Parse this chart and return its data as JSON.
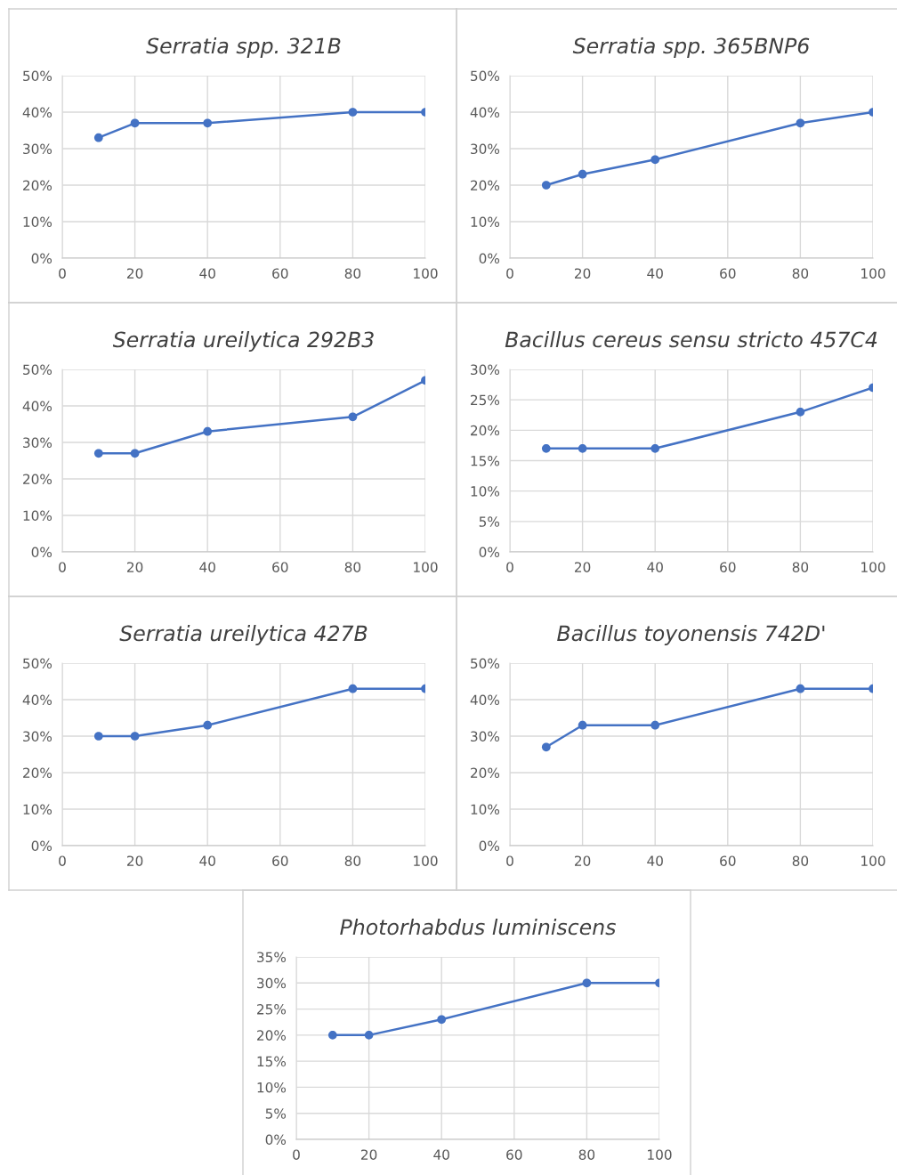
{
  "chart_data": [
    {
      "type": "line",
      "title": "Serratia spp. 321B",
      "x": [
        10,
        20,
        40,
        80,
        100
      ],
      "series": [
        {
          "color": "#4472c4",
          "values": [
            33,
            37,
            37,
            40,
            40
          ]
        }
      ],
      "xlim": [
        0,
        100
      ],
      "xticks": [
        0,
        20,
        40,
        60,
        80,
        100
      ],
      "ylim": [
        0,
        50
      ],
      "yticks": [
        {
          "value": 0,
          "label": "0%"
        },
        {
          "value": 10,
          "label": "10%"
        },
        {
          "value": 20,
          "label": "20%"
        },
        {
          "value": 30,
          "label": "30%"
        },
        {
          "value": 40,
          "label": "40%"
        },
        {
          "value": 50,
          "label": "50%"
        }
      ],
      "grid": true,
      "marker": "circle",
      "line_style": "solid"
    },
    {
      "type": "line",
      "title": "Serratia spp. 365BNP6",
      "x": [
        10,
        20,
        40,
        80,
        100
      ],
      "series": [
        {
          "color": "#4472c4",
          "values": [
            20,
            23,
            27,
            37,
            40
          ]
        }
      ],
      "xlim": [
        0,
        100
      ],
      "xticks": [
        0,
        20,
        40,
        60,
        80,
        100
      ],
      "ylim": [
        0,
        50
      ],
      "yticks": [
        {
          "value": 0,
          "label": "0%"
        },
        {
          "value": 10,
          "label": "10%"
        },
        {
          "value": 20,
          "label": "20%"
        },
        {
          "value": 30,
          "label": "30%"
        },
        {
          "value": 40,
          "label": "40%"
        },
        {
          "value": 50,
          "label": "50%"
        }
      ],
      "grid": true,
      "marker": "circle",
      "line_style": "solid"
    },
    {
      "type": "line",
      "title": "Serratia ureilytica 292B3",
      "x": [
        10,
        20,
        40,
        80,
        100
      ],
      "series": [
        {
          "color": "#4472c4",
          "values": [
            27,
            27,
            33,
            37,
            47
          ]
        }
      ],
      "xlim": [
        0,
        100
      ],
      "xticks": [
        0,
        20,
        40,
        60,
        80,
        100
      ],
      "ylim": [
        0,
        50
      ],
      "yticks": [
        {
          "value": 0,
          "label": "0%"
        },
        {
          "value": 10,
          "label": "10%"
        },
        {
          "value": 20,
          "label": "20%"
        },
        {
          "value": 30,
          "label": "30%"
        },
        {
          "value": 40,
          "label": "40%"
        },
        {
          "value": 50,
          "label": "50%"
        }
      ],
      "grid": true,
      "marker": "circle",
      "line_style": "solid"
    },
    {
      "type": "line",
      "title": "Bacillus cereus sensu stricto 457C4",
      "x": [
        10,
        20,
        40,
        80,
        100
      ],
      "series": [
        {
          "color": "#4472c4",
          "values": [
            17,
            17,
            17,
            23,
            27
          ]
        }
      ],
      "xlim": [
        0,
        100
      ],
      "xticks": [
        0,
        20,
        40,
        60,
        80,
        100
      ],
      "ylim": [
        0,
        30
      ],
      "yticks": [
        {
          "value": 0,
          "label": "0%"
        },
        {
          "value": 5,
          "label": "5%"
        },
        {
          "value": 10,
          "label": "10%"
        },
        {
          "value": 15,
          "label": "15%"
        },
        {
          "value": 20,
          "label": "20%"
        },
        {
          "value": 25,
          "label": "25%"
        },
        {
          "value": 30,
          "label": "30%"
        }
      ],
      "grid": true,
      "marker": "circle",
      "line_style": "solid"
    },
    {
      "type": "line",
      "title": "Serratia ureilytica 427B",
      "x": [
        10,
        20,
        40,
        80,
        100
      ],
      "series": [
        {
          "color": "#4472c4",
          "values": [
            30,
            30,
            33,
            43,
            43
          ]
        }
      ],
      "xlim": [
        0,
        100
      ],
      "xticks": [
        0,
        20,
        40,
        60,
        80,
        100
      ],
      "ylim": [
        0,
        50
      ],
      "yticks": [
        {
          "value": 0,
          "label": "0%"
        },
        {
          "value": 10,
          "label": "10%"
        },
        {
          "value": 20,
          "label": "20%"
        },
        {
          "value": 30,
          "label": "30%"
        },
        {
          "value": 40,
          "label": "40%"
        },
        {
          "value": 50,
          "label": "50%"
        }
      ],
      "grid": true,
      "marker": "circle",
      "line_style": "solid"
    },
    {
      "type": "line",
      "title": "Bacillus toyonensis 742D'",
      "x": [
        10,
        20,
        40,
        80,
        100
      ],
      "series": [
        {
          "color": "#4472c4",
          "values": [
            27,
            33,
            33,
            43,
            43
          ]
        }
      ],
      "xlim": [
        0,
        100
      ],
      "xticks": [
        0,
        20,
        40,
        60,
        80,
        100
      ],
      "ylim": [
        0,
        50
      ],
      "yticks": [
        {
          "value": 0,
          "label": "0%"
        },
        {
          "value": 10,
          "label": "10%"
        },
        {
          "value": 20,
          "label": "20%"
        },
        {
          "value": 30,
          "label": "30%"
        },
        {
          "value": 40,
          "label": "40%"
        },
        {
          "value": 50,
          "label": "50%"
        }
      ],
      "grid": true,
      "marker": "circle",
      "line_style": "solid"
    },
    {
      "type": "line",
      "title": "Photorhabdus luminiscens",
      "x": [
        10,
        20,
        40,
        80,
        100
      ],
      "series": [
        {
          "color": "#4472c4",
          "values": [
            20,
            20,
            23,
            30,
            30
          ]
        }
      ],
      "xlim": [
        0,
        100
      ],
      "xticks": [
        0,
        20,
        40,
        60,
        80,
        100
      ],
      "ylim": [
        0,
        35
      ],
      "yticks": [
        {
          "value": 0,
          "label": "0%"
        },
        {
          "value": 5,
          "label": "5%"
        },
        {
          "value": 10,
          "label": "10%"
        },
        {
          "value": 15,
          "label": "15%"
        },
        {
          "value": 20,
          "label": "20%"
        },
        {
          "value": 25,
          "label": "25%"
        },
        {
          "value": 30,
          "label": "30%"
        },
        {
          "value": 35,
          "label": "35%"
        }
      ],
      "grid": true,
      "marker": "circle",
      "line_style": "solid"
    }
  ]
}
